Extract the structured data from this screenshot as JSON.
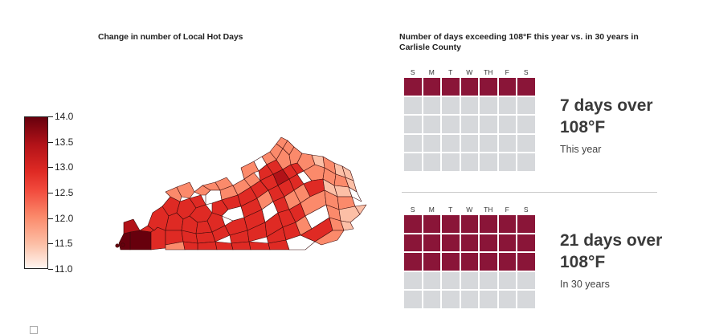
{
  "map": {
    "title": "Change in number of Local Hot Days",
    "legend": {
      "ticks": [
        "14.0",
        "13.5",
        "13.0",
        "12.5",
        "12.0",
        "11.5",
        "11.0"
      ],
      "min": 11.0,
      "max": 14.0,
      "color_scale": [
        "#67000d",
        "#b21218",
        "#df2a24",
        "#f1493c",
        "#fb8a6b",
        "#fcbfa6",
        "#fff5f0"
      ]
    }
  },
  "calendar": {
    "title": "Number of days exceeding 108°F this year vs. in 30 years in Carlisle County",
    "days_of_week": [
      "S",
      "M",
      "T",
      "W",
      "TH",
      "F",
      "S"
    ],
    "filled_color": "#8a1538",
    "empty_color": "#d6d8db",
    "this_year": {
      "headline": "7 days over 108°F",
      "caption": "This year",
      "days": 7,
      "total_cells": 35
    },
    "in_30_years": {
      "headline": "21 days over 108°F",
      "caption": "In 30 years",
      "days": 21,
      "total_cells": 35
    }
  }
}
